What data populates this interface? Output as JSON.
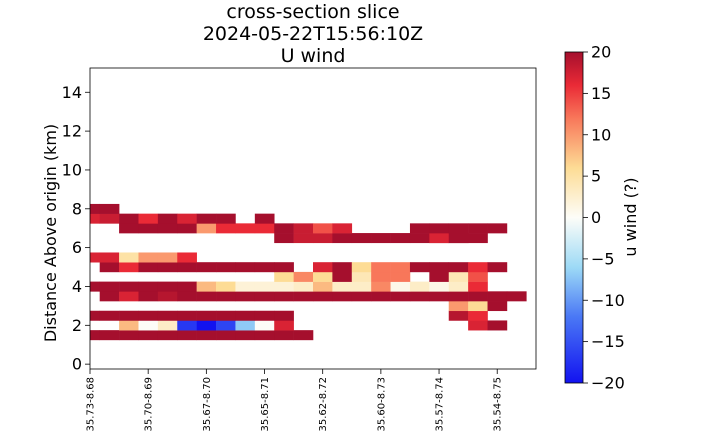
{
  "chart_data": {
    "type": "heatmap",
    "title": [
      "cross-section slice",
      "2024-05-22T15:56:10Z",
      "U wind"
    ],
    "xlabel": "",
    "ylabel": "Distance Above origin (km)",
    "ylim": [
      -0.25,
      15.25
    ],
    "y_ticks": [
      0,
      2,
      4,
      6,
      8,
      10,
      12,
      14
    ],
    "x_tick_labels": [
      "35.73-8.68",
      "35.70-8.69",
      "35.67-8.70",
      "35.65-8.71",
      "35.62-8.72",
      "35.60-8.73",
      "35.57-8.74",
      "35.54-8.75"
    ],
    "x_tick_positions": [
      0,
      3,
      6,
      9,
      12,
      15,
      18,
      21
    ],
    "n_columns": 23,
    "row_height_km": 0.5,
    "colorbar": {
      "label": "u wind (?)",
      "vmin": -20,
      "vmax": 20,
      "ticks": [
        -20,
        -15,
        -10,
        -5,
        0,
        5,
        10,
        15,
        20
      ],
      "colormap": "RdYlBu_r"
    },
    "rows": [
      {
        "y": 1.5,
        "cells": [
          [
            0,
            11,
            20
          ]
        ]
      },
      {
        "y": 2.0,
        "cells": [
          [
            2,
            8
          ],
          [
            3,
            0
          ],
          [
            4,
            3
          ],
          [
            5,
            -17
          ],
          [
            6,
            -20
          ],
          [
            7,
            -16
          ],
          [
            8,
            -7
          ],
          [
            9,
            0
          ],
          [
            10,
            17
          ],
          [
            20,
            17
          ],
          [
            21,
            20
          ]
        ]
      },
      {
        "y": 2.5,
        "cells": [
          [
            0,
            10,
            20
          ],
          [
            19,
            19
          ],
          [
            20,
            16
          ]
        ]
      },
      {
        "y": 3.0,
        "cells": [
          [
            19,
            10
          ],
          [
            20,
            6
          ],
          [
            21,
            20
          ]
        ]
      },
      {
        "y": 3.5,
        "cells": [
          [
            1,
            20
          ],
          [
            2,
            17
          ],
          [
            3,
            20
          ],
          [
            4,
            19
          ],
          [
            5,
            22,
            20
          ]
        ]
      },
      {
        "y": 4.0,
        "cells": [
          [
            0,
            5,
            20
          ],
          [
            6,
            8
          ],
          [
            7,
            6
          ],
          [
            8,
            2
          ],
          [
            9,
            2
          ],
          [
            10,
            2
          ],
          [
            11,
            3
          ],
          [
            12,
            8
          ],
          [
            13,
            3
          ],
          [
            14,
            3
          ],
          [
            15,
            11
          ],
          [
            16,
            1
          ],
          [
            17,
            3
          ],
          [
            18,
            1
          ],
          [
            19,
            3
          ],
          [
            20,
            16
          ]
        ]
      },
      {
        "y": 4.5,
        "cells": [
          [
            10,
            6
          ],
          [
            11,
            11
          ],
          [
            12,
            6
          ],
          [
            13,
            20
          ],
          [
            14,
            4
          ],
          [
            15,
            12
          ],
          [
            16,
            12
          ],
          [
            18,
            20
          ],
          [
            19,
            4
          ],
          [
            20,
            14
          ]
        ]
      },
      {
        "y": 5.0,
        "cells": [
          [
            1,
            20
          ],
          [
            2,
            16
          ],
          [
            3,
            10,
            20
          ],
          [
            12,
            17
          ],
          [
            13,
            20
          ],
          [
            14,
            6
          ],
          [
            15,
            12
          ],
          [
            16,
            12
          ],
          [
            17,
            19,
            20
          ],
          [
            20,
            16
          ],
          [
            21,
            20
          ]
        ]
      },
      {
        "y": 5.5,
        "cells": [
          [
            0,
            1,
            17
          ],
          [
            2,
            5
          ],
          [
            3,
            4,
            10
          ],
          [
            5,
            16
          ]
        ]
      },
      {
        "y": 6.5,
        "cells": [
          [
            10,
            20
          ],
          [
            11,
            12,
            18
          ],
          [
            13,
            20
          ],
          [
            14,
            19,
            20
          ],
          [
            18,
            17
          ],
          [
            19,
            20,
            20
          ]
        ]
      },
      {
        "y": 7.0,
        "cells": [
          [
            2,
            20
          ],
          [
            3,
            4,
            20
          ],
          [
            5,
            20
          ],
          [
            6,
            10
          ],
          [
            7,
            9,
            16
          ],
          [
            10,
            20
          ],
          [
            11,
            18
          ],
          [
            12,
            14
          ],
          [
            13,
            17
          ],
          [
            17,
            21,
            20
          ]
        ]
      },
      {
        "y": 7.5,
        "cells": [
          [
            0,
            17
          ],
          [
            1,
            18
          ],
          [
            2,
            20
          ],
          [
            3,
            16
          ],
          [
            4,
            20
          ],
          [
            5,
            17
          ],
          [
            6,
            7,
            20
          ],
          [
            9,
            20
          ]
        ]
      },
      {
        "y": 8.0,
        "cells": [
          [
            0,
            1,
            20
          ]
        ]
      }
    ]
  }
}
